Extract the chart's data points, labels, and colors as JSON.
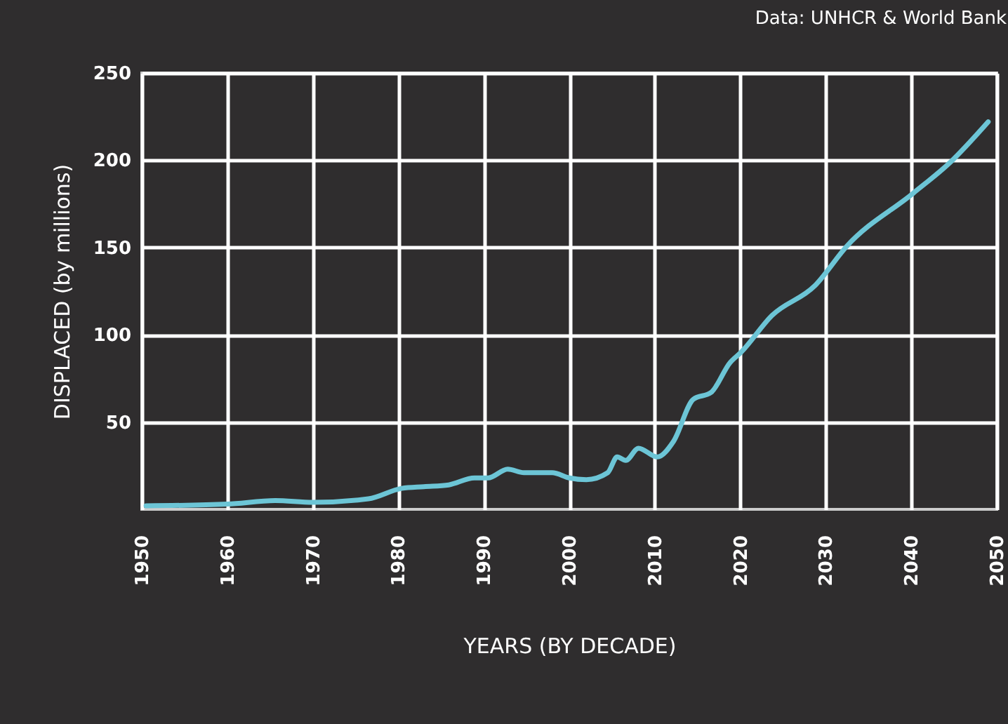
{
  "chart_data": {
    "type": "line",
    "xlabel": "YEARS (BY DECADE)",
    "ylabel": "DISPLACED (by millions)",
    "annotations": [
      "Data: UNHCR & World Bank"
    ],
    "x": [
      1950.5,
      1960,
      1965.6,
      1970,
      1976.5,
      1980.4,
      1983,
      1985.9,
      1988.9,
      1990.5,
      1992.8,
      1994.7,
      1998,
      2000,
      2002,
      2004.5,
      2005.6,
      2006.6,
      2008.1,
      2010.3,
      2012.2,
      2014.5,
      2016.6,
      2018.8,
      2020.1,
      2023.7,
      2028.7,
      2032.5,
      2040.2,
      2044.6,
      2049
    ],
    "series": [
      {
        "color": "#6cc5d6",
        "values": [
          2,
          3,
          5,
          4,
          6,
          12,
          13,
          14,
          18,
          18,
          23,
          21,
          21,
          18,
          17,
          21,
          30,
          28,
          35,
          30,
          39,
          63,
          67,
          84,
          90,
          111,
          128,
          151,
          181,
          199,
          222
        ]
      }
    ],
    "xlim": [
      1950,
      2050
    ],
    "xticks": [
      1950,
      1960,
      1970,
      1980,
      1990,
      2000,
      2010,
      2020,
      2030,
      2040,
      2050
    ],
    "ylim": [
      0,
      250
    ],
    "yticks": [
      50,
      100,
      150,
      200,
      250
    ],
    "grid": true,
    "marker": "none",
    "line_style": "solid"
  }
}
